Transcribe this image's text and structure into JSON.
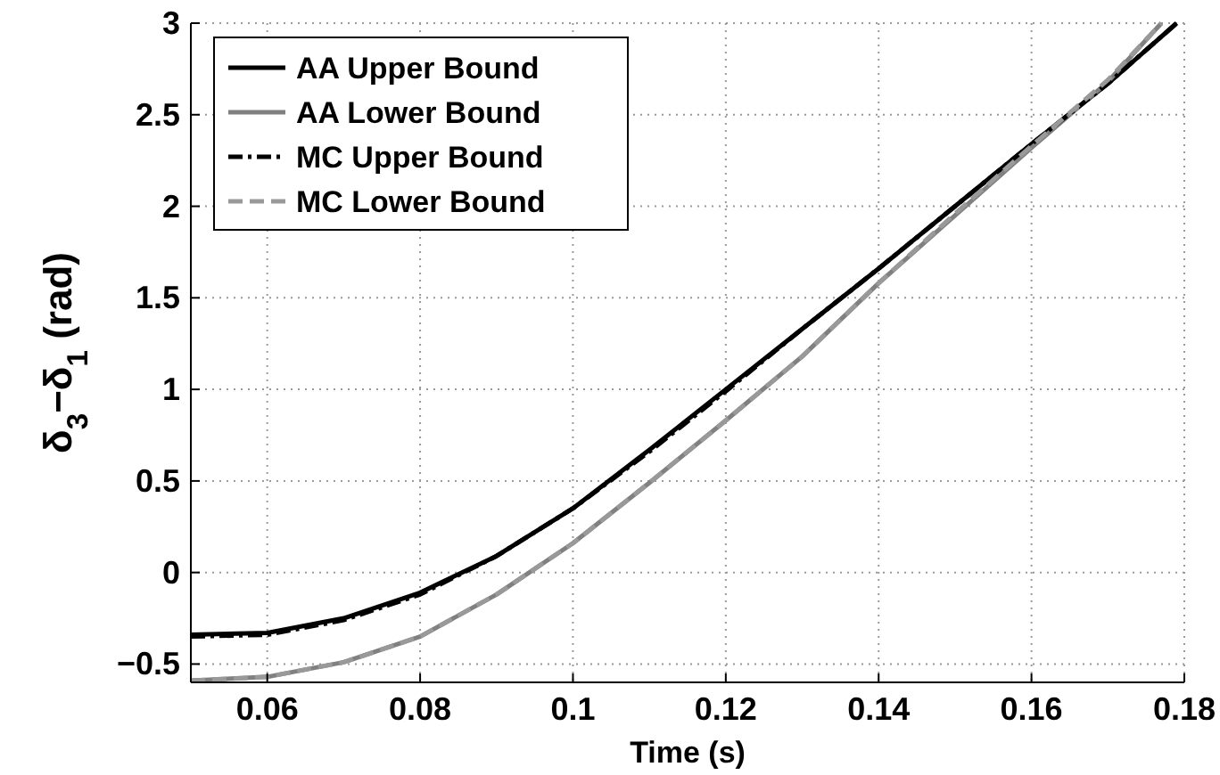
{
  "chart_data": {
    "type": "line",
    "xlabel": "Time (s)",
    "ylabel": "δ$_{3}$−δ$_{1}$ (rad)",
    "xlim": [
      0.05,
      0.18
    ],
    "xticks": [
      0.06,
      0.08,
      0.1,
      0.12,
      0.14,
      0.16,
      0.18
    ],
    "ylim": [
      -0.6,
      3
    ],
    "yticks": [
      {
        "value": -0.5,
        "label": "−0.5"
      },
      0,
      0.5,
      1,
      1.5,
      2,
      2.5,
      3
    ],
    "grid": true,
    "legend": "top left",
    "series": [
      {
        "name": "AA Upper Bound",
        "color": "#000000",
        "line_style": "solid",
        "x": [
          0.05,
          0.06,
          0.07,
          0.08,
          0.09,
          0.1,
          0.11,
          0.12,
          0.13,
          0.14,
          0.15,
          0.16,
          0.17,
          0.179
        ],
        "values": [
          -0.34,
          -0.33,
          -0.25,
          -0.11,
          0.09,
          0.35,
          0.67,
          1.0,
          1.33,
          1.66,
          2.0,
          2.34,
          2.67,
          3.0
        ]
      },
      {
        "name": "AA Lower Bound",
        "color": "#808080",
        "line_style": "solid",
        "x": [
          0.05,
          0.06,
          0.07,
          0.08,
          0.09,
          0.1,
          0.11,
          0.12,
          0.13,
          0.14,
          0.15,
          0.16,
          0.17,
          0.177
        ],
        "values": [
          -0.59,
          -0.57,
          -0.49,
          -0.35,
          -0.12,
          0.16,
          0.49,
          0.83,
          1.18,
          1.58,
          1.95,
          2.32,
          2.68,
          3.0
        ]
      },
      {
        "name": "MC Upper Bound",
        "color": "#000000",
        "line_style": "dashdot",
        "x": [
          0.05,
          0.06,
          0.07,
          0.08,
          0.09,
          0.1,
          0.11,
          0.12,
          0.13,
          0.14,
          0.15,
          0.16,
          0.17,
          0.179
        ],
        "values": [
          -0.35,
          -0.34,
          -0.26,
          -0.12,
          0.09,
          0.35,
          0.66,
          0.99,
          1.33,
          1.66,
          2.0,
          2.34,
          2.67,
          3.0
        ]
      },
      {
        "name": "MC Lower Bound",
        "color": "#999999",
        "line_style": "dashed",
        "x": [
          0.05,
          0.06,
          0.07,
          0.08,
          0.09,
          0.1,
          0.11,
          0.12,
          0.13,
          0.14,
          0.15,
          0.16,
          0.17,
          0.177
        ],
        "values": [
          -0.59,
          -0.57,
          -0.49,
          -0.35,
          -0.12,
          0.16,
          0.49,
          0.83,
          1.18,
          1.58,
          1.96,
          2.33,
          2.69,
          3.0
        ]
      }
    ]
  }
}
